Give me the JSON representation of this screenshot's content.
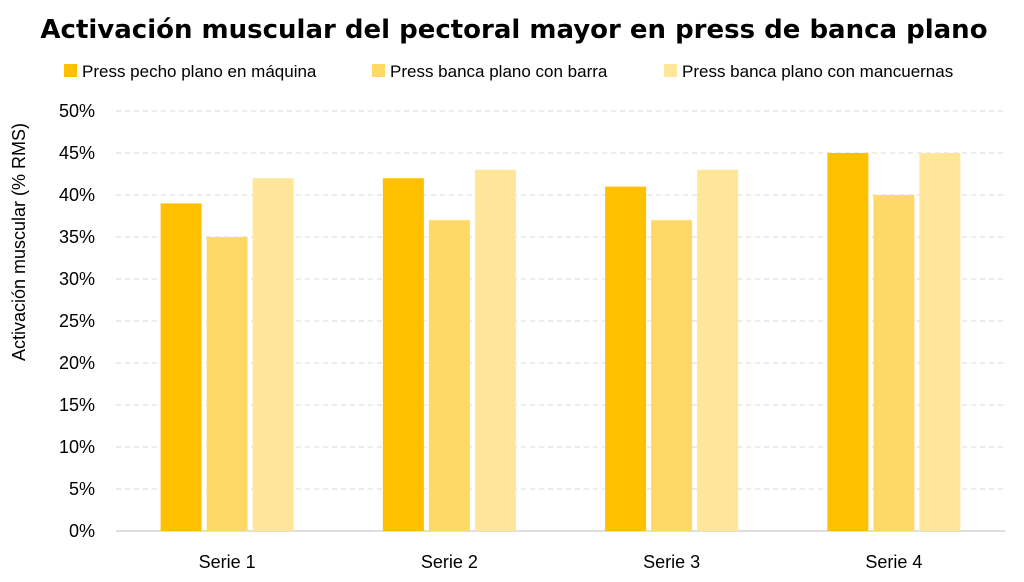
{
  "chart_data": {
    "type": "bar",
    "title": "Activación muscular del pectoral mayor en press de banca plano",
    "xlabel": "",
    "ylabel": "Activación muscular (% RMS)",
    "categories": [
      "Serie 1",
      "Serie 2",
      "Serie 3",
      "Serie 4"
    ],
    "series": [
      {
        "name": "Press pecho plano en máquina",
        "color": "#ffc000",
        "values": [
          39,
          42,
          41,
          45
        ]
      },
      {
        "name": "Press banca plano con barra",
        "color": "#ffd966",
        "values": [
          35,
          37,
          37,
          40
        ]
      },
      {
        "name": "Press banca plano con mancuernas",
        "color": "#ffe699",
        "values": [
          42,
          43,
          43,
          45
        ]
      }
    ],
    "ylim": [
      0,
      50
    ],
    "yticks": [
      0,
      5,
      10,
      15,
      20,
      25,
      30,
      35,
      40,
      45,
      50
    ],
    "ytick_labels": [
      "0%",
      "5%",
      "10%",
      "15%",
      "20%",
      "25%",
      "30%",
      "35%",
      "40%",
      "45%",
      "50%"
    ],
    "grid": "horizontal dashed",
    "legend_position": "top"
  }
}
